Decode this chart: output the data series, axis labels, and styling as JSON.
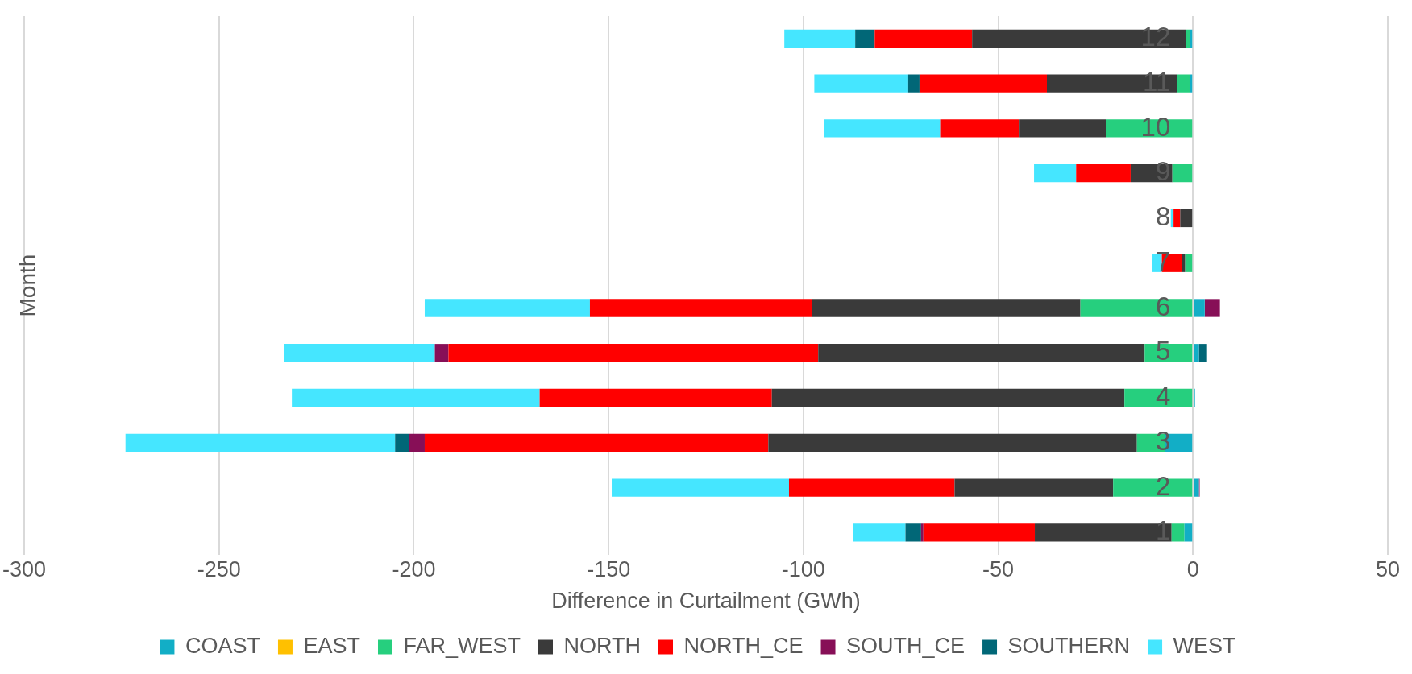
{
  "chart_data": {
    "type": "bar",
    "orientation": "horizontal",
    "stacked": true,
    "xlabel": "Difference in Curtailment (GWh)",
    "ylabel": "Month",
    "categories": [
      "12",
      "11",
      "10",
      "9",
      "8",
      "7",
      "6",
      "5",
      "4",
      "3",
      "2",
      "1"
    ],
    "series": [
      {
        "name": "COAST",
        "color": "#12aec6",
        "values": [
          -0.7,
          -0.7,
          0,
          0,
          0,
          0,
          3.0,
          1.5,
          0.5,
          -7.3,
          1.5,
          -2.2
        ]
      },
      {
        "name": "EAST",
        "color": "#ffc000",
        "values": [
          0,
          0,
          0,
          0,
          0,
          0,
          0,
          0,
          0,
          0,
          0,
          0
        ]
      },
      {
        "name": "FAR_WEST",
        "color": "#26cf7e",
        "values": [
          -1.1,
          -3.4,
          -22.4,
          -5.3,
          0,
          -2.0,
          -28.9,
          -12.4,
          -17.6,
          -7.1,
          -20.5,
          -3.3
        ]
      },
      {
        "name": "NORTH",
        "color": "#3a3a3a",
        "values": [
          -54.9,
          -33.4,
          -22.3,
          -10.7,
          -3.3,
          -0.9,
          -68.8,
          -83.8,
          -90.5,
          -94.6,
          -40.7,
          -35.1
        ]
      },
      {
        "name": "NORTH_CE",
        "color": "#ff0000",
        "values": [
          -25.0,
          -32.7,
          -20.2,
          -14.0,
          -1.7,
          -5.1,
          -57.1,
          -94.9,
          -59.6,
          -88.2,
          -42.5,
          -28.6
        ]
      },
      {
        "name": "SOUTH_CE",
        "color": "#870f57",
        "values": [
          0,
          0,
          0,
          0,
          0,
          0,
          3.9,
          -3.5,
          0,
          -4.0,
          0.2,
          -0.6
        ]
      },
      {
        "name": "SOUTHERN",
        "color": "#016777",
        "values": [
          -5.0,
          -2.9,
          0,
          0,
          0,
          0,
          0,
          2.1,
          0,
          -3.6,
          0,
          -4.0
        ]
      },
      {
        "name": "WEST",
        "color": "#45e6ff",
        "values": [
          -18.2,
          -24.1,
          -29.9,
          -10.8,
          -0.7,
          -2.5,
          -42.4,
          -38.6,
          -63.6,
          -69.2,
          -45.5,
          -13.4
        ]
      }
    ],
    "xlim": [
      -300,
      50
    ],
    "xticks": [
      -300,
      -250,
      -200,
      -150,
      -100,
      -50,
      0,
      50
    ],
    "grid": "x",
    "legend": "bottom"
  }
}
